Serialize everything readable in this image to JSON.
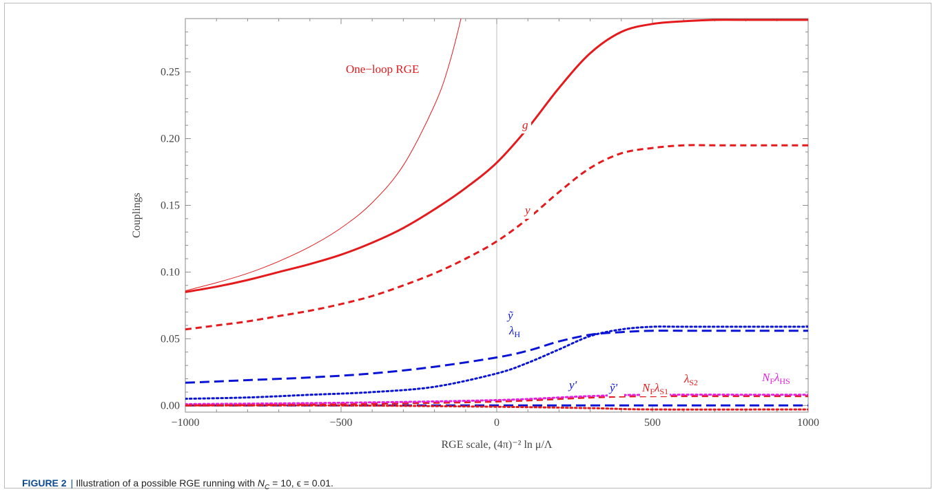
{
  "chart_data": {
    "type": "line",
    "xlabel": "RGE scale, (4π)⁻² ln μ/Λ",
    "ylabel": "Couplings",
    "xlim": [
      -1000,
      1000
    ],
    "ylim": [
      -0.005,
      0.29
    ],
    "xticks": [
      "−1000",
      "−500",
      "0",
      "500",
      "1000"
    ],
    "xtick_values": [
      -1000,
      -500,
      0,
      500,
      1000
    ],
    "yticks": [
      "0.00",
      "0.05",
      "0.10",
      "0.15",
      "0.20",
      "0.25"
    ],
    "ytick_values": [
      0,
      0.05,
      0.1,
      0.15,
      0.2,
      0.25
    ],
    "grid": false,
    "vertical_line_x": 0,
    "annotation": "One−loop RGE",
    "series": [
      {
        "name": "One−loop RGE",
        "color": "#e41a1c",
        "style": "thin",
        "x": [
          -1000,
          -900,
          -800,
          -700,
          -600,
          -500,
          -400,
          -300,
          -200,
          -150,
          -100,
          -80
        ],
        "y": [
          0.086,
          0.092,
          0.099,
          0.108,
          0.119,
          0.133,
          0.152,
          0.18,
          0.225,
          0.258,
          0.305,
          0.33
        ]
      },
      {
        "name": "g",
        "color": "#e41a1c",
        "style": "solid",
        "x": [
          -1000,
          -900,
          -800,
          -700,
          -600,
          -500,
          -400,
          -300,
          -200,
          -100,
          0,
          100,
          200,
          300,
          400,
          500,
          600,
          700,
          800,
          900,
          1000
        ],
        "y": [
          0.085,
          0.089,
          0.094,
          0.1,
          0.106,
          0.113,
          0.122,
          0.133,
          0.147,
          0.163,
          0.182,
          0.208,
          0.238,
          0.264,
          0.28,
          0.286,
          0.288,
          0.289,
          0.289,
          0.289,
          0.289
        ]
      },
      {
        "name": "y",
        "color": "#e41a1c",
        "style": "dashed",
        "x": [
          -1000,
          -900,
          -800,
          -700,
          -600,
          -500,
          -400,
          -300,
          -200,
          -100,
          0,
          100,
          200,
          300,
          400,
          500,
          600,
          700,
          800,
          900,
          1000
        ],
        "y": [
          0.057,
          0.06,
          0.063,
          0.067,
          0.071,
          0.076,
          0.082,
          0.09,
          0.099,
          0.11,
          0.123,
          0.14,
          0.16,
          0.178,
          0.189,
          0.193,
          0.195,
          0.195,
          0.195,
          0.195,
          0.195
        ]
      },
      {
        "name": "ỹ",
        "color": "#0a14d6",
        "style": "longdash",
        "x": [
          -1000,
          -800,
          -600,
          -400,
          -200,
          0,
          100,
          200,
          300,
          400,
          500,
          600,
          800,
          1000
        ],
        "y": [
          0.017,
          0.019,
          0.021,
          0.024,
          0.029,
          0.036,
          0.041,
          0.048,
          0.053,
          0.055,
          0.056,
          0.056,
          0.056,
          0.056
        ]
      },
      {
        "name": "λH",
        "color": "#0a14d6",
        "style": "dotted",
        "x": [
          -1000,
          -800,
          -600,
          -400,
          -200,
          0,
          100,
          200,
          300,
          400,
          500,
          600,
          800,
          1000
        ],
        "y": [
          0.005,
          0.006,
          0.008,
          0.01,
          0.014,
          0.024,
          0.032,
          0.042,
          0.052,
          0.057,
          0.059,
          0.059,
          0.059,
          0.059
        ]
      },
      {
        "name": "y'",
        "color": "#0a14d6",
        "style": "longdash",
        "x": [
          -1000,
          -500,
          0,
          500,
          1000
        ],
        "y": [
          0.0,
          0.0,
          0.0,
          0.0,
          0.0
        ]
      },
      {
        "name": "λS2",
        "color": "#e41a1c",
        "style": "dashed",
        "x": [
          -1000,
          -500,
          0,
          300,
          500,
          1000
        ],
        "y": [
          0.0,
          0.001,
          0.003,
          0.006,
          0.007,
          0.007
        ]
      },
      {
        "name": "NFλHS",
        "color": "#e81ee0",
        "style": "dotted",
        "x": [
          -1000,
          -500,
          0,
          300,
          500,
          1000
        ],
        "y": [
          0.001,
          0.002,
          0.004,
          0.007,
          0.008,
          0.008
        ]
      },
      {
        "name": "NFλS1",
        "color": "#e41a1c",
        "style": "dotted",
        "x": [
          -1000,
          -500,
          0,
          300,
          500,
          1000
        ],
        "y": [
          0.0,
          0.0,
          -0.001,
          -0.002,
          -0.003,
          -0.003
        ]
      }
    ],
    "labels": [
      {
        "text": "g",
        "color": "#e41a1c"
      },
      {
        "text": "y",
        "color": "#e41a1c"
      },
      {
        "text": "ỹ",
        "color": "#0a14d6"
      },
      {
        "text": "λ",
        "sub": "H",
        "color": "#0a14d6"
      },
      {
        "text": "y'",
        "color": "#0a14d6"
      },
      {
        "text": "ỹ'",
        "color": "#0a14d6"
      },
      {
        "text": "N",
        "sub": "F",
        "text2": "λ",
        "sub2": "S1",
        "color": "#e41a1c"
      },
      {
        "text": "λ",
        "sub": "S2",
        "color": "#e41a1c"
      },
      {
        "text": "N",
        "sub": "F",
        "text2": "λ",
        "sub2": "HS",
        "color": "#e81ee0"
      }
    ]
  },
  "caption": {
    "figure_label": "FIGURE 2",
    "separator": "|",
    "text_before": "Illustration of a possible RGE running with ",
    "math": "N",
    "math_sub": "C",
    "text_after": " = 10, ϵ = 0.01."
  }
}
